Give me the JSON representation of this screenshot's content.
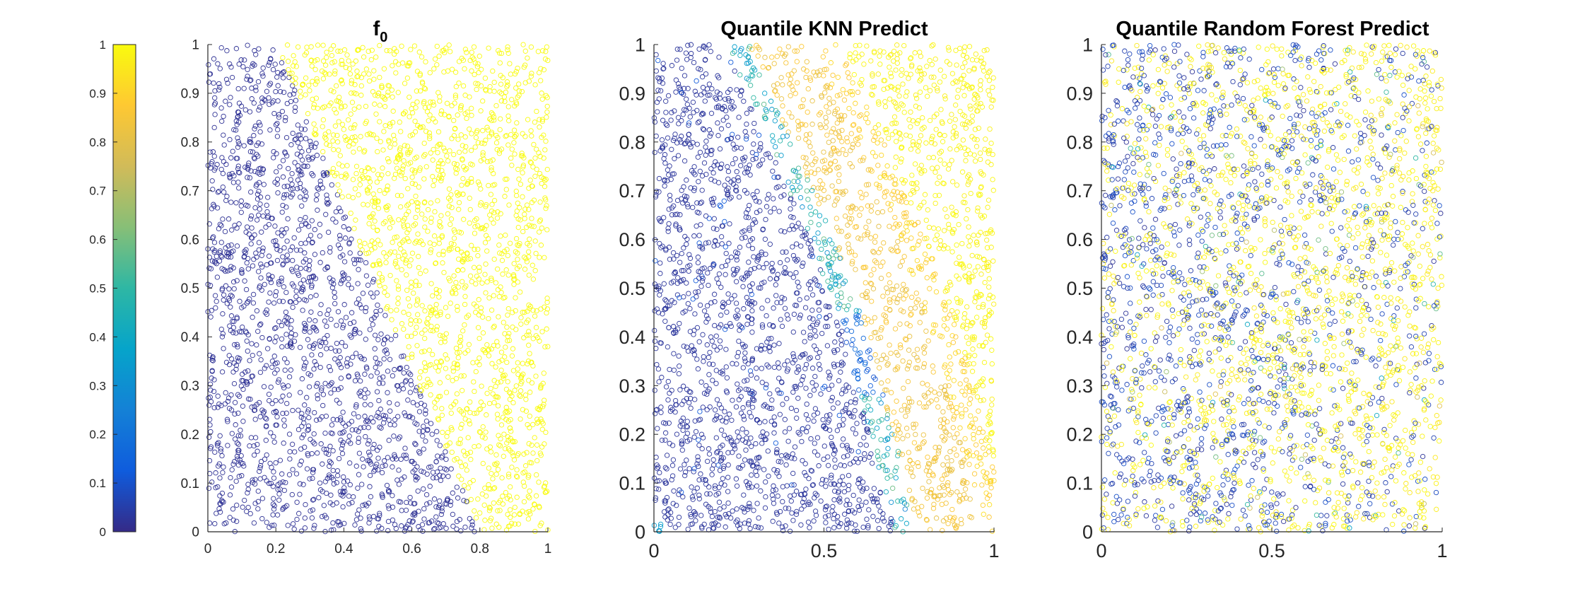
{
  "colorbar": {
    "colormap": "parula",
    "range": [
      0,
      1
    ],
    "ticks": [
      "0",
      "0.1",
      "0.2",
      "0.3",
      "0.4",
      "0.5",
      "0.6",
      "0.7",
      "0.8",
      "0.9",
      "1"
    ],
    "stops": [
      "#352a87",
      "#0f5cdd",
      "#1481d6",
      "#06a4ca",
      "#2eb7a4",
      "#87bf77",
      "#d1bb59",
      "#fec832",
      "#f9fb0e"
    ]
  },
  "chart_data": [
    {
      "type": "scatter",
      "title": "f",
      "title_subscript": "0",
      "xlim": [
        0,
        1
      ],
      "ylim": [
        0,
        1
      ],
      "xticks": [
        "0",
        "0.2",
        "0.4",
        "0.6",
        "0.8",
        "1"
      ],
      "yticks": [
        "0",
        "0.1",
        "0.2",
        "0.3",
        "0.4",
        "0.5",
        "0.6",
        "0.7",
        "0.8",
        "0.9",
        "1"
      ],
      "color_value_low": 0,
      "color_value_high": 1,
      "decision_boundary": [
        [
          0.2,
          1.0
        ],
        [
          0.8,
          0.0
        ]
      ],
      "description_rule": "value = 0 left of boundary, 1 right of boundary"
    },
    {
      "type": "scatter",
      "title": "Quantile KNN Predict",
      "xlim": [
        0,
        1
      ],
      "ylim": [
        0,
        1
      ],
      "xticks": [
        "0",
        "0.5",
        "1"
      ],
      "yticks": [
        "0",
        "0.1",
        "0.2",
        "0.3",
        "0.4",
        "0.5",
        "0.6",
        "0.7",
        "0.8",
        "0.9",
        "1"
      ],
      "boundary_estimate": [
        [
          0.25,
          1.0
        ],
        [
          0.5,
          0.6
        ],
        [
          0.6,
          0.4
        ],
        [
          0.75,
          0.0
        ]
      ],
      "transition_value_range": [
        0.3,
        0.85
      ]
    },
    {
      "type": "scatter",
      "title": "Quantile Random Forest Predict",
      "xlim": [
        0,
        1
      ],
      "ylim": [
        0,
        1
      ],
      "xticks": [
        "0",
        "0.5",
        "1"
      ],
      "yticks": [
        "0",
        "0.1",
        "0.2",
        "0.3",
        "0.4",
        "0.5",
        "0.6",
        "0.7",
        "0.8",
        "0.9",
        "1"
      ],
      "pattern": "mixed 0 and 1 values with weak left-to-right trend"
    }
  ]
}
